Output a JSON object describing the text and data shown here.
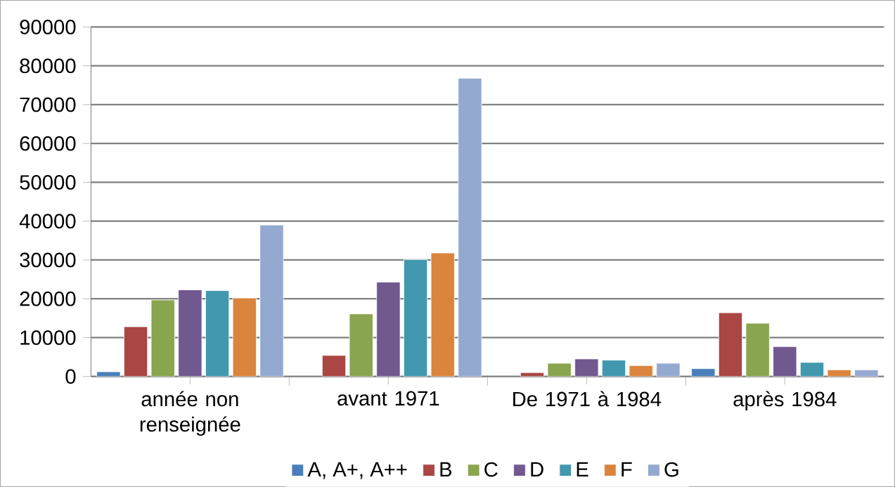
{
  "chart_data": {
    "type": "bar",
    "categories": [
      "année non renseignée",
      "avant 1971",
      "De 1971 à 1984",
      "après 1984"
    ],
    "series": [
      {
        "name": "A, A+, A++",
        "color": "#4a7ebb",
        "values": [
          1200,
          null,
          null,
          2000
        ]
      },
      {
        "name": "B",
        "color": "#aa4643",
        "values": [
          12800,
          5400,
          1000,
          16400
        ]
      },
      {
        "name": "C",
        "color": "#89a54e",
        "values": [
          19700,
          16100,
          3400,
          13700
        ]
      },
      {
        "name": "D",
        "color": "#71588f",
        "values": [
          22300,
          24300,
          4500,
          7700
        ]
      },
      {
        "name": "E",
        "color": "#4198af",
        "values": [
          22100,
          30100,
          4200,
          3600
        ]
      },
      {
        "name": "F",
        "color": "#db843d",
        "values": [
          20200,
          31800,
          2800,
          1700
        ]
      },
      {
        "name": "G",
        "color": "#93a9cf",
        "values": [
          39000,
          76800,
          3400,
          1700
        ]
      }
    ],
    "ylim": [
      0,
      90000
    ],
    "yticks": [
      0,
      10000,
      20000,
      30000,
      40000,
      50000,
      60000,
      70000,
      80000,
      90000
    ],
    "grid": "y",
    "legend": "bottom"
  }
}
